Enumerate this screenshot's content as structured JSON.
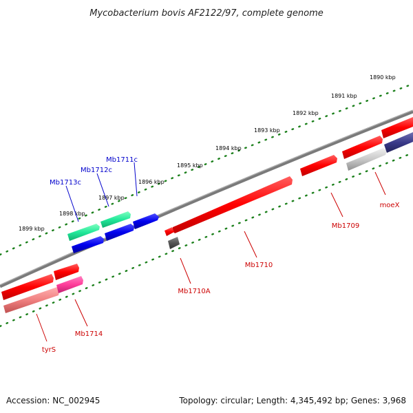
{
  "title": "Mycobacterium bovis AF2122/97, complete genome",
  "footer": {
    "accession": "Accession: NC_002945",
    "topology": "Topology: circular; Length: 4,345,492 bp; Genes: 3,968"
  },
  "colors": {
    "backbone": "#808080",
    "tick": "#1a7f1a",
    "forward_gene_label": "#0000cc",
    "reverse_gene_label": "#cc0000",
    "red_gene": "#ff0000",
    "blue_gene": "#0000ee",
    "green_gene": "#22e89a",
    "pink_gene": "#ff3d9a",
    "grey_gene": "#c0c0c0",
    "dark_grey_gene": "#555555",
    "navy_gene": "#3a3a8a",
    "salmon_gene": "#f08080"
  },
  "scale_labels": [
    "1890 kbp",
    "1891 kbp",
    "1892 kbp",
    "1893 kbp",
    "1894 kbp",
    "1895 kbp",
    "1896 kbp",
    "1897 kbp",
    "1898 kbp",
    "1899 kbp"
  ],
  "genes": {
    "forward": [
      {
        "name": "Mb1711c",
        "color": "blue"
      },
      {
        "name": "Mb1712c",
        "color": "green"
      },
      {
        "name": "Mb1713c",
        "color": "green"
      }
    ],
    "reverse": [
      {
        "name": "moeX",
        "color": "grey"
      },
      {
        "name": "Mb1709",
        "color": "red"
      },
      {
        "name": "Mb1710",
        "color": "red"
      },
      {
        "name": "Mb1710A",
        "color": "dark-grey"
      },
      {
        "name": "Mb1714",
        "color": "pink"
      },
      {
        "name": "tyrS",
        "color": "salmon"
      }
    ]
  }
}
